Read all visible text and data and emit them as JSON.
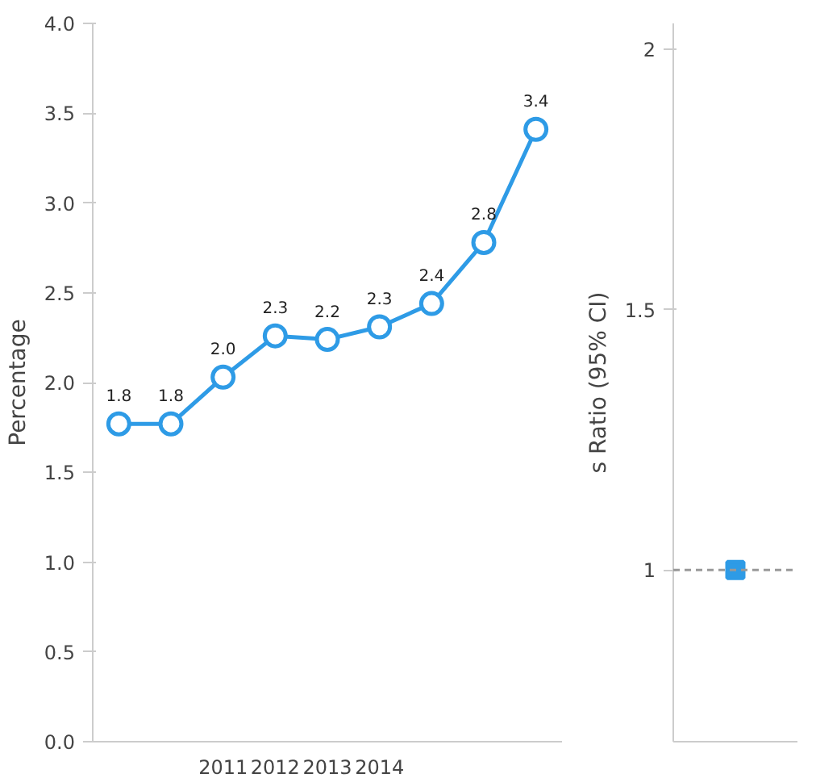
{
  "chart_data": [
    {
      "type": "line",
      "ylabel": "Percentage",
      "categories": [
        null,
        null,
        "2011",
        "2012",
        "2013",
        "2014",
        null,
        null,
        null
      ],
      "series": [
        {
          "color": "#2e9be6",
          "values": [
            1.77,
            1.77,
            2.03,
            2.26,
            2.24,
            2.31,
            2.44,
            2.78,
            3.41
          ],
          "value_labels": [
            "1.8",
            "1.8",
            "2.0",
            "2.3",
            "2.2",
            "2.3",
            "2.4",
            "2.8",
            "3.4"
          ]
        }
      ],
      "ylim": [
        0,
        4
      ],
      "yticks": [
        {
          "value": 0,
          "label": "0.0"
        },
        {
          "value": 0.5,
          "label": "0.5"
        },
        {
          "value": 1,
          "label": "1.0"
        },
        {
          "value": 1.5,
          "label": "1.5"
        },
        {
          "value": 2,
          "label": "2.0"
        },
        {
          "value": 2.5,
          "label": "2.5"
        },
        {
          "value": 3,
          "label": "3.0"
        },
        {
          "value": 3.5,
          "label": "3.5"
        },
        {
          "value": 4,
          "label": "4.0"
        }
      ],
      "marker": "circle",
      "grid": false
    },
    {
      "type": "scatter",
      "ylabel": "s Ratio (95% CI)",
      "categories": [
        null
      ],
      "series": [
        {
          "color": "#2e9be6",
          "values": [
            1
          ]
        }
      ],
      "ylim": [
        0.67,
        2.05
      ],
      "yticks": [
        1,
        1.5,
        2
      ],
      "marker": "square",
      "grid": false,
      "ref_lines": [
        {
          "axis": "y",
          "value": 1,
          "color": "#999999",
          "line_style": "dashed"
        }
      ]
    }
  ]
}
